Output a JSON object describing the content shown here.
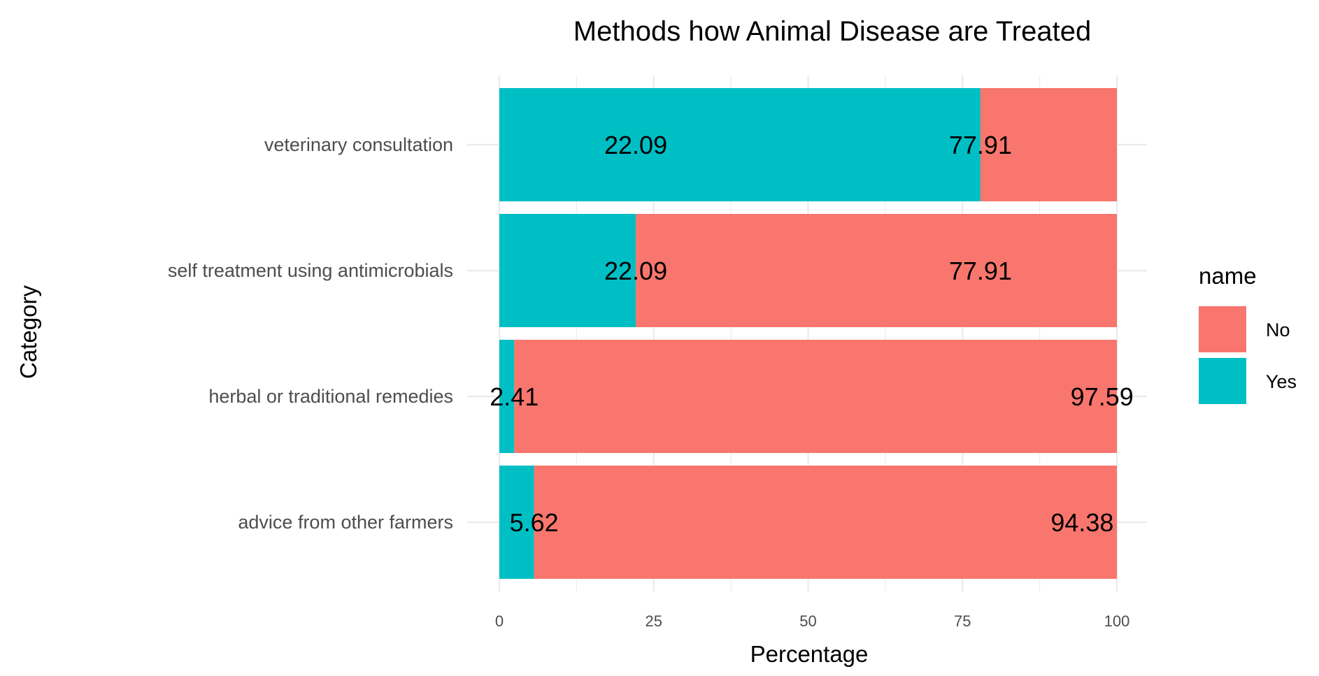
{
  "chart_data": {
    "type": "bar",
    "orientation": "horizontal",
    "stacked": true,
    "title": "Methods how Animal Disease are Treated",
    "xlabel": "Percentage",
    "ylabel": "Category",
    "xlim": [
      0,
      100
    ],
    "x_ticks": [
      0,
      25,
      50,
      75,
      100
    ],
    "grid": true,
    "legend": {
      "title": "name",
      "position": "right",
      "items": [
        {
          "label": "No",
          "color": "#F8766D"
        },
        {
          "label": "Yes",
          "color": "#00BFC4"
        }
      ]
    },
    "categories": [
      "veterinary consultation",
      "self treatment using antimicrobials",
      "herbal or traditional remedies",
      "advice from other farmers"
    ],
    "series": [
      {
        "name": "Yes",
        "color": "#00BFC4",
        "values": [
          77.91,
          22.09,
          2.41,
          5.62
        ]
      },
      {
        "name": "No",
        "color": "#F8766D",
        "values": [
          22.09,
          77.91,
          97.59,
          94.38
        ]
      }
    ],
    "data_labels": [
      [
        {
          "text": "22.09",
          "x": 22.09
        },
        {
          "text": "77.91",
          "x": 77.91
        }
      ],
      [
        {
          "text": "22.09",
          "x": 22.09
        },
        {
          "text": "77.91",
          "x": 77.91
        }
      ],
      [
        {
          "text": "2.41",
          "x": 2.41
        },
        {
          "text": "97.59",
          "x": 97.59
        }
      ],
      [
        {
          "text": "5.62",
          "x": 5.62
        },
        {
          "text": "94.38",
          "x": 94.38
        }
      ]
    ]
  }
}
